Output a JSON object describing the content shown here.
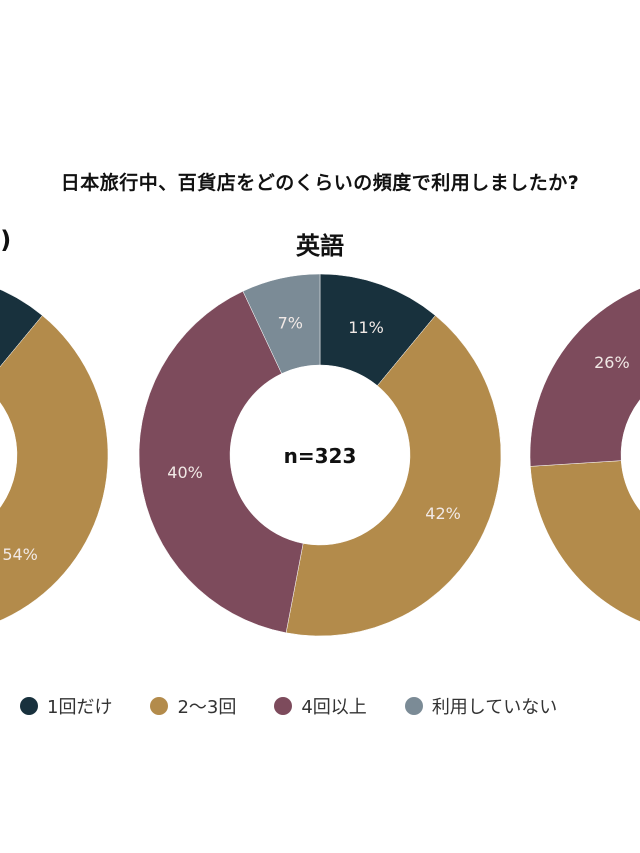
{
  "title": "日本旅行中、百貨店をどのくらいの頻度で利用しましたか?",
  "colors": {
    "1回だけ": "#18313d",
    "2〜3回": "#b38b4b",
    "4回以上": "#7d4b5c",
    "利用していない": "#7b8b96"
  },
  "legend": [
    "1回だけ",
    "2〜3回",
    "4回以上",
    "利用していない"
  ],
  "chart_data": [
    {
      "type": "pie",
      "subtitle": "s)",
      "slices": [
        {
          "category": "1回だけ",
          "value": 11,
          "label": ""
        },
        {
          "category": "2〜3回",
          "value": 54,
          "label": "54%"
        }
      ]
    },
    {
      "type": "pie",
      "subtitle": "英語",
      "center_text": "n=323",
      "slices": [
        {
          "category": "1回だけ",
          "value": 11,
          "label": "11%"
        },
        {
          "category": "2〜3回",
          "value": 42,
          "label": "42%"
        },
        {
          "category": "4回以上",
          "value": 40,
          "label": "40%"
        },
        {
          "category": "利用していない",
          "value": 7,
          "label": "7%"
        }
      ]
    },
    {
      "type": "pie",
      "subtitle": "",
      "slices": [
        {
          "category": "4回以上",
          "value": 26,
          "label": "26%"
        }
      ]
    }
  ]
}
